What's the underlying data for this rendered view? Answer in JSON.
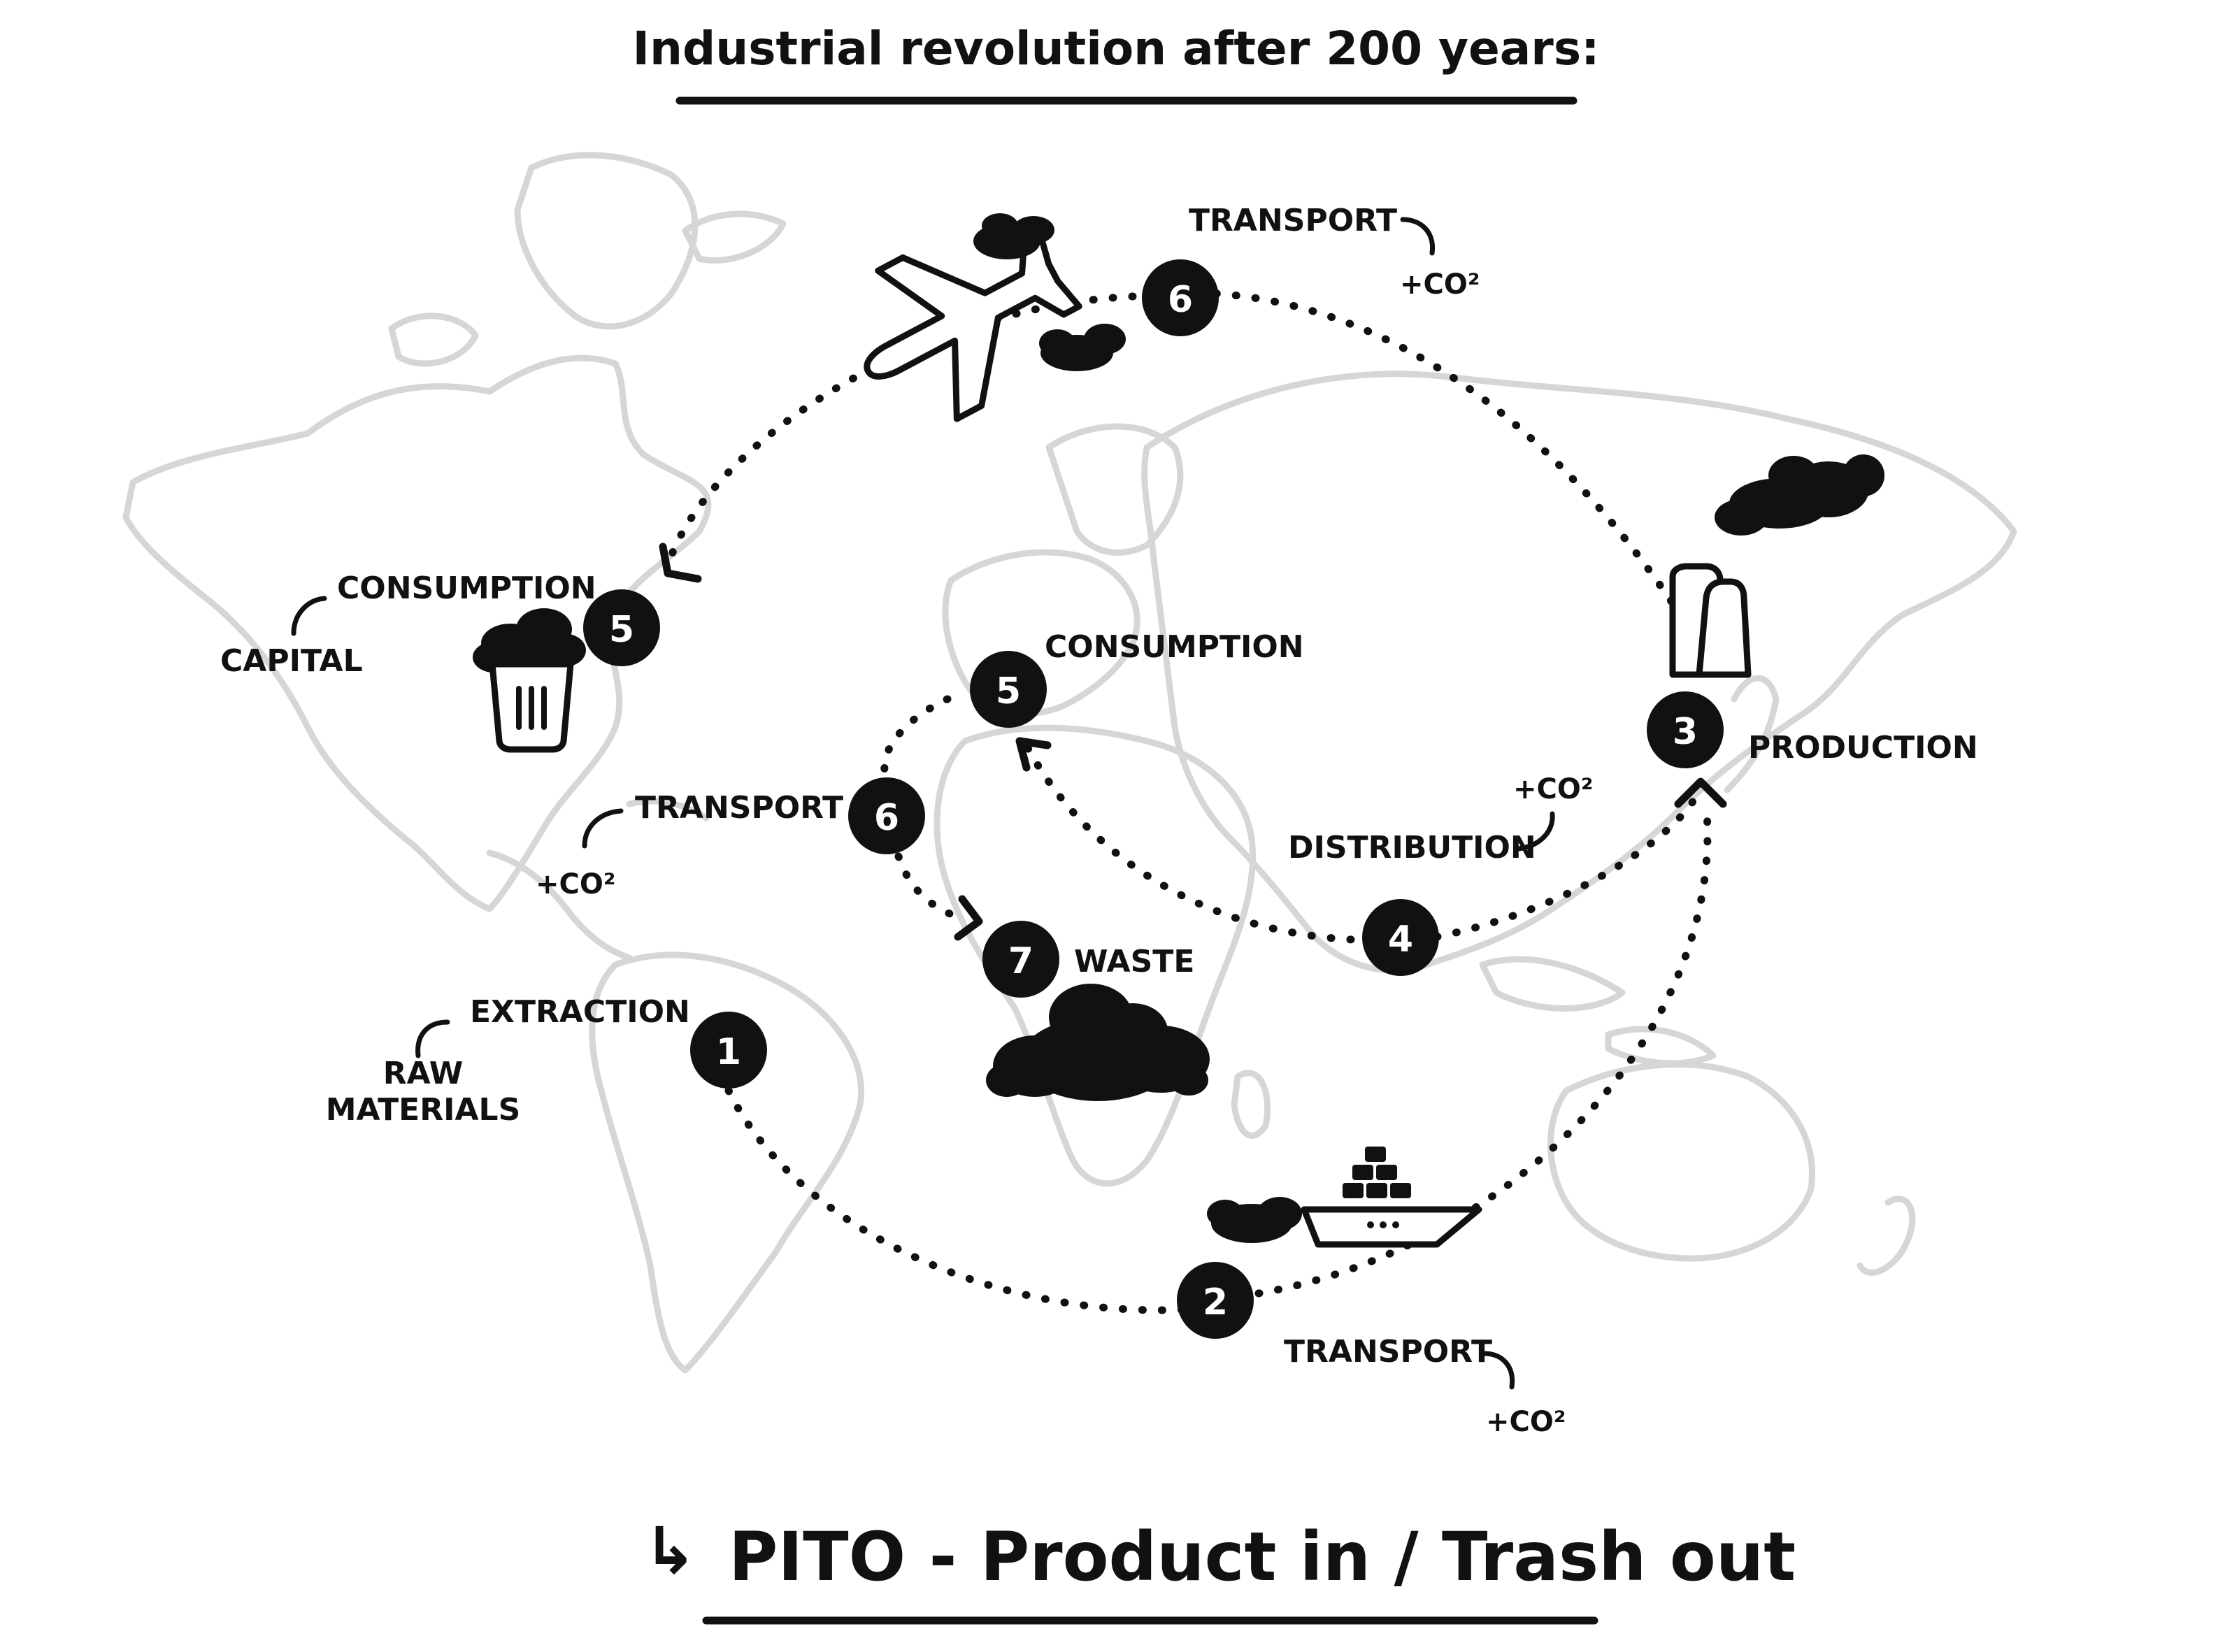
{
  "title": "Industrial revolution after 200 years:",
  "subtitle": {
    "arrow_glyph": "↳",
    "text": "PITO - Product in / Trash out"
  },
  "steps": {
    "extraction": {
      "number": "1",
      "label": "EXTRACTION",
      "note": "RAW MATERIALS"
    },
    "transport_ship": {
      "number": "2",
      "label": "TRANSPORT",
      "note": "+CO²"
    },
    "production": {
      "number": "3",
      "label": "PRODUCTION"
    },
    "distribution": {
      "number": "4",
      "label": "DISTRIBUTION",
      "note": "+CO²"
    },
    "consumption_capital": {
      "number": "5",
      "label": "CONSUMPTION",
      "note": "CAPITAL"
    },
    "consumption_local": {
      "number": "5",
      "label": "CONSUMPTION"
    },
    "transport_air": {
      "number": "6",
      "label": "TRANSPORT",
      "note": "+CO²"
    },
    "transport_local": {
      "number": "6",
      "label": "TRANSPORT",
      "note": "+CO²"
    },
    "waste": {
      "number": "7",
      "label": "WASTE"
    }
  },
  "icons": {
    "plane": "airplane-icon",
    "ship": "cargo-ship-icon",
    "factory": "factory-chimney-icon",
    "bin": "overflowing-trash-bin-icon",
    "cloud": "pollution-cloud-icon"
  },
  "colors": {
    "ink": "#111111",
    "map": "#d6d6d6",
    "background": "#ffffff"
  }
}
